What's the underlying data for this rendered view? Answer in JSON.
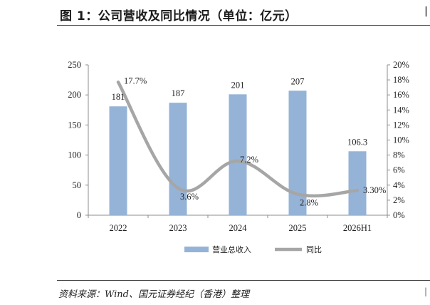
{
  "figure": {
    "title": "图 1：公司营收及同比情况（单位：亿元）",
    "corner_mark_top": "|",
    "corner_mark_bottom": "|",
    "source": "资料来源：Wind、国元证券经纪（香港）整理"
  },
  "chart_data": {
    "type": "bar+line",
    "categories": [
      "2022",
      "2023",
      "2024",
      "2025",
      "2026H1"
    ],
    "series": [
      {
        "name": "营业总收入",
        "type": "bar",
        "axis": "left",
        "values": [
          181,
          187,
          201,
          207,
          106.3
        ],
        "labels": [
          "181",
          "187",
          "201",
          "207",
          "106.3"
        ],
        "color": "#95b3d7"
      },
      {
        "name": "同比",
        "type": "line",
        "smooth": true,
        "axis": "right",
        "values": [
          17.7,
          3.6,
          7.2,
          2.8,
          3.3
        ],
        "labels": [
          "17.7%",
          "3.6%",
          "7.2%",
          "2.8%",
          "3.30%"
        ],
        "color": "#a6a6a6"
      }
    ],
    "y_left": {
      "min": 0,
      "max": 250,
      "step": 50,
      "ticks": [
        "0",
        "50",
        "100",
        "150",
        "200",
        "250"
      ]
    },
    "y_right": {
      "min": 0,
      "max": 20,
      "step": 2,
      "ticks": [
        "0%",
        "2%",
        "4%",
        "6%",
        "8%",
        "10%",
        "12%",
        "14%",
        "16%",
        "18%",
        "20%"
      ]
    },
    "grid": false,
    "legend": "bottom-center"
  }
}
